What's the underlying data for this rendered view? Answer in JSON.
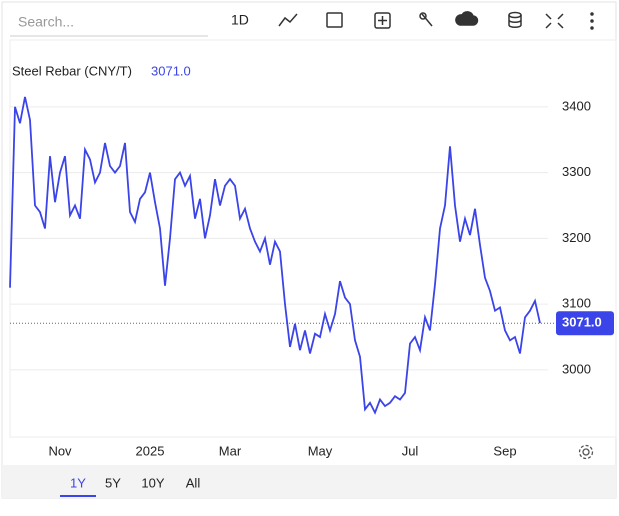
{
  "toolbar": {
    "search_placeholder": "Search...",
    "interval": "1D"
  },
  "ranges": {
    "options": [
      "1Y",
      "5Y",
      "10Y",
      "All"
    ],
    "selected": "1Y"
  },
  "chart_data": {
    "type": "line",
    "title": "Steel Rebar (CNY/T)",
    "current_value": {
      "value": 3071,
      "label": "3071.0"
    },
    "color": "#3b44e8",
    "categories": [
      null,
      null,
      null,
      null,
      null,
      null,
      null,
      null,
      null,
      null,
      "Nov",
      null,
      null,
      null,
      null,
      null,
      null,
      null,
      null,
      null,
      null,
      null,
      null,
      null,
      null,
      null,
      null,
      null,
      "2025",
      null,
      null,
      null,
      null,
      null,
      null,
      null,
      null,
      null,
      null,
      null,
      null,
      null,
      null,
      null,
      "Mar",
      null,
      null,
      null,
      null,
      null,
      null,
      null,
      null,
      null,
      null,
      null,
      null,
      null,
      null,
      null,
      null,
      null,
      "May",
      null,
      null,
      null,
      null,
      null,
      null,
      null,
      null,
      null,
      null,
      null,
      null,
      null,
      null,
      null,
      null,
      null,
      "Jul",
      null,
      null,
      null,
      null,
      null,
      null,
      null,
      null,
      null,
      null,
      null,
      null,
      null,
      null,
      null,
      null,
      null,
      null,
      "Sep",
      null,
      null,
      null,
      null,
      null,
      null,
      null
    ],
    "values": [
      3125,
      3400,
      3375,
      3415,
      3380,
      3250,
      3240,
      3215,
      3325,
      3255,
      3300,
      3325,
      3235,
      3250,
      3230,
      3335,
      3320,
      3285,
      3300,
      3345,
      3310,
      3300,
      3310,
      3345,
      3240,
      3225,
      3260,
      3270,
      3300,
      3255,
      3215,
      3128,
      3200,
      3290,
      3300,
      3280,
      3295,
      3230,
      3260,
      3200,
      3235,
      3290,
      3250,
      3280,
      3290,
      3280,
      3230,
      3245,
      3215,
      3195,
      3180,
      3200,
      3160,
      3195,
      3180,
      3100,
      3035,
      3070,
      3030,
      3060,
      3025,
      3055,
      3050,
      3085,
      3060,
      3085,
      3135,
      3110,
      3100,
      3045,
      3020,
      2940,
      2950,
      2935,
      2955,
      2945,
      2950,
      2960,
      2955,
      2965,
      3040,
      3050,
      3030,
      3080,
      3060,
      3130,
      3215,
      3250,
      3340,
      3250,
      3195,
      3230,
      3205,
      3245,
      3190,
      3140,
      3120,
      3090,
      3095,
      3060,
      3045,
      3050,
      3025,
      3080,
      3090,
      3105,
      3071
    ],
    "ylim": [
      2898,
      3494
    ],
    "yticks": [
      3000,
      3100,
      3200,
      3300,
      3400
    ],
    "grid": true
  }
}
